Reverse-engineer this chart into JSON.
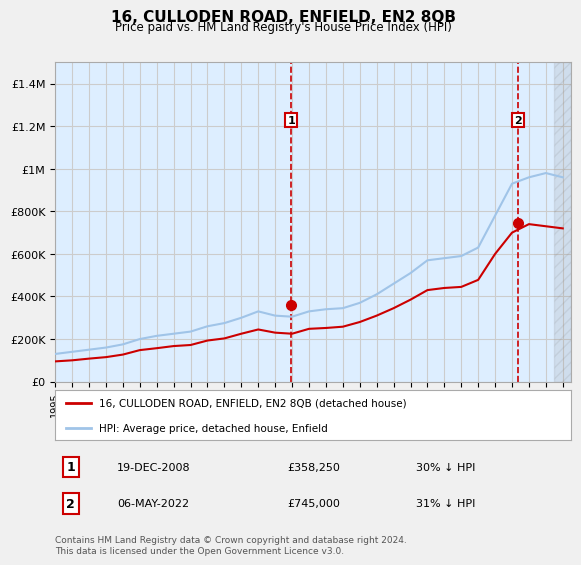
{
  "title": "16, CULLODEN ROAD, ENFIELD, EN2 8QB",
  "subtitle": "Price paid vs. HM Land Registry's House Price Index (HPI)",
  "legend_label1": "16, CULLODEN ROAD, ENFIELD, EN2 8QB (detached house)",
  "legend_label2": "HPI: Average price, detached house, Enfield",
  "transaction1_label": "1",
  "transaction1_date": "19-DEC-2008",
  "transaction1_price": "£358,250",
  "transaction1_hpi": "30% ↓ HPI",
  "transaction2_label": "2",
  "transaction2_date": "06-MAY-2022",
  "transaction2_price": "£745,000",
  "transaction2_hpi": "31% ↓ HPI",
  "footnote": "Contains HM Land Registry data © Crown copyright and database right 2024.\nThis data is licensed under the Open Government Licence v3.0.",
  "line_color_property": "#cc0000",
  "line_color_hpi": "#a0c4e8",
  "marker_color": "#cc0000",
  "transaction_box_color": "#cc0000",
  "vline_color": "#cc0000",
  "background_color": "#ddeeff",
  "plot_bg_color": "#ffffff",
  "grid_color": "#cccccc",
  "ylim": [
    0,
    1500000
  ],
  "yticks": [
    0,
    200000,
    400000,
    600000,
    800000,
    1000000,
    1200000,
    1400000
  ],
  "hpi_years": [
    1995,
    1996,
    1997,
    1998,
    1999,
    2000,
    2001,
    2002,
    2003,
    2004,
    2005,
    2006,
    2007,
    2008,
    2009,
    2010,
    2011,
    2012,
    2013,
    2014,
    2015,
    2016,
    2017,
    2018,
    2019,
    2020,
    2021,
    2022,
    2023,
    2024,
    2025
  ],
  "hpi_values": [
    130000,
    140000,
    150000,
    160000,
    175000,
    200000,
    215000,
    225000,
    235000,
    260000,
    275000,
    300000,
    330000,
    310000,
    305000,
    330000,
    340000,
    345000,
    370000,
    410000,
    460000,
    510000,
    570000,
    580000,
    590000,
    630000,
    780000,
    930000,
    960000,
    980000,
    960000
  ],
  "property_years": [
    1995,
    1996,
    1997,
    1998,
    1999,
    2000,
    2001,
    2002,
    2003,
    2004,
    2005,
    2006,
    2007,
    2008,
    2009,
    2010,
    2011,
    2012,
    2013,
    2014,
    2015,
    2016,
    2017,
    2018,
    2019,
    2020,
    2021,
    2022,
    2023,
    2024,
    2025
  ],
  "property_values": [
    95000,
    100000,
    108000,
    115000,
    127000,
    148000,
    157000,
    167000,
    172000,
    193000,
    203000,
    225000,
    245000,
    230000,
    225000,
    248000,
    252000,
    258000,
    280000,
    310000,
    345000,
    385000,
    430000,
    440000,
    445000,
    478000,
    600000,
    700000,
    740000,
    730000,
    720000
  ],
  "transaction1_x": 2008.96,
  "transaction1_y": 358250,
  "transaction2_x": 2022.35,
  "transaction2_y": 745000,
  "xmin": 1995,
  "xmax": 2025.5
}
